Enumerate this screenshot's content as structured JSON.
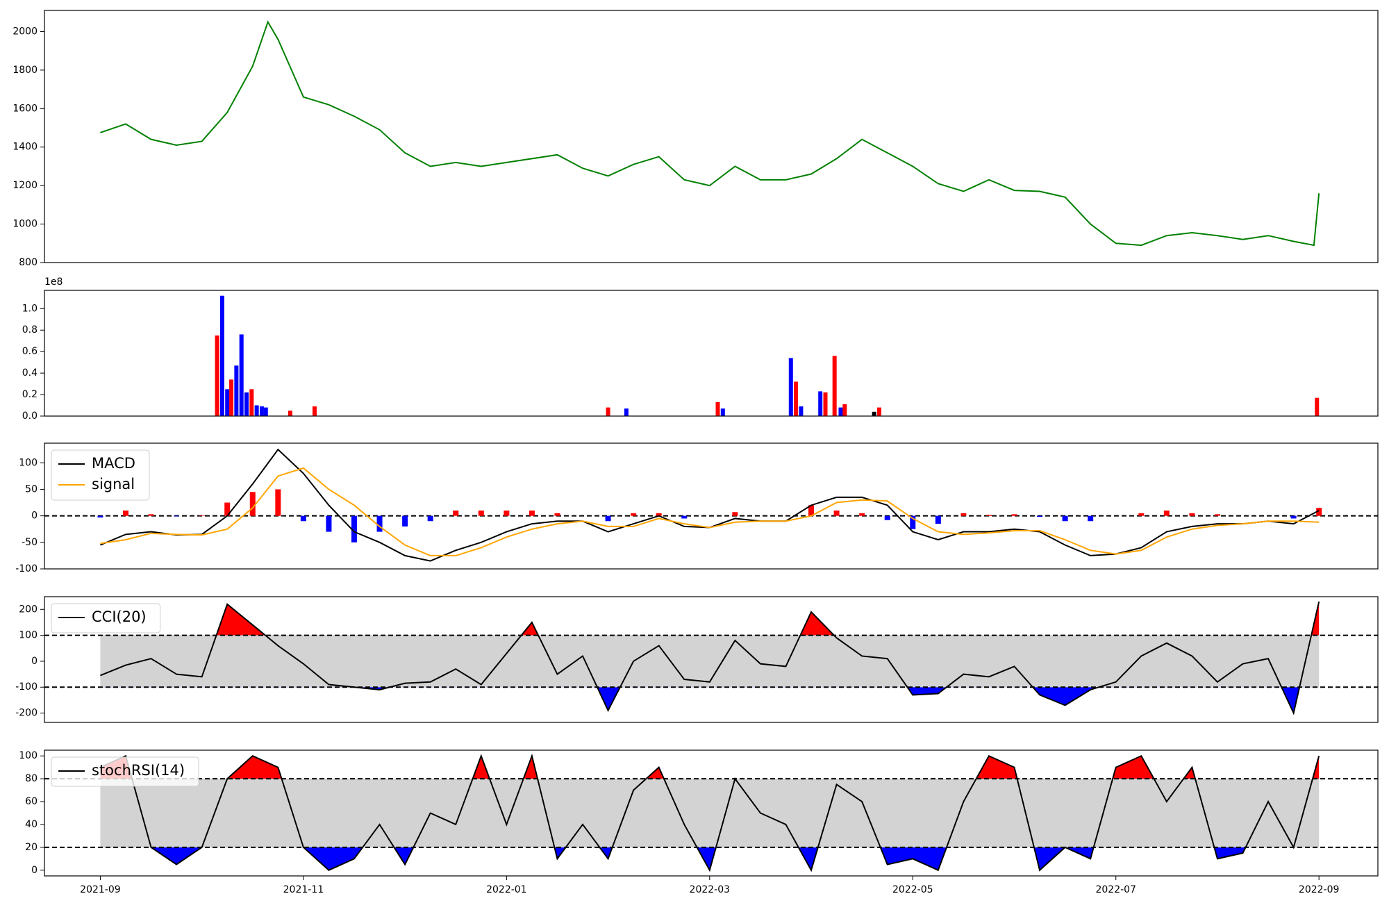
{
  "chart_data": [
    {
      "type": "line",
      "xlim": [
        -0.55,
        12.58
      ],
      "ylim": [
        800,
        2110
      ],
      "yticks": [
        800,
        1000,
        1200,
        1400,
        1600,
        1800,
        2000
      ],
      "x": [
        0,
        0.25,
        0.5,
        0.75,
        1,
        1.25,
        1.5,
        1.65,
        1.75,
        2,
        2.25,
        2.5,
        2.75,
        3,
        3.25,
        3.5,
        3.75,
        4,
        4.25,
        4.5,
        4.75,
        5,
        5.25,
        5.5,
        5.75,
        6,
        6.25,
        6.5,
        6.75,
        7,
        7.25,
        7.5,
        7.75,
        8,
        8.25,
        8.5,
        8.75,
        9,
        9.25,
        9.5,
        9.75,
        10,
        10.25,
        10.5,
        10.75,
        11,
        11.25,
        11.5,
        11.75,
        11.95,
        12
      ],
      "series": [
        {
          "color": "#008000",
          "values": [
            1475,
            1520,
            1440,
            1410,
            1430,
            1580,
            1820,
            2050,
            1960,
            1660,
            1620,
            1560,
            1490,
            1370,
            1300,
            1320,
            1300,
            1320,
            1340,
            1360,
            1290,
            1250,
            1310,
            1350,
            1230,
            1200,
            1300,
            1230,
            1230,
            1260,
            1340,
            1440,
            1370,
            1300,
            1210,
            1170,
            1230,
            1175,
            1170,
            1140,
            1000,
            900,
            890,
            940,
            955,
            940,
            920,
            940,
            910,
            890,
            1160
          ]
        }
      ]
    },
    {
      "type": "bar",
      "xlim": [
        -0.55,
        12.58
      ],
      "ylim": [
        0,
        117000000
      ],
      "offset_label": "1e8",
      "yticks": [
        {
          "value": 0,
          "label": "0.0"
        },
        {
          "value": 20000000,
          "label": "0.2"
        },
        {
          "value": 40000000,
          "label": "0.4"
        },
        {
          "value": 60000000,
          "label": "0.6"
        },
        {
          "value": 80000000,
          "label": "0.8"
        },
        {
          "value": 100000000,
          "label": "1.0"
        }
      ],
      "x": [
        1.15,
        1.2,
        1.25,
        1.29,
        1.34,
        1.39,
        1.44,
        1.49,
        1.54,
        1.59,
        1.63,
        1.87,
        2.11,
        5.0,
        5.18,
        6.08,
        6.13,
        6.8,
        6.85,
        6.9,
        7.09,
        7.14,
        7.23,
        7.29,
        7.33,
        7.62,
        7.67,
        11.98
      ],
      "values": [
        75000000,
        112000000,
        25000000,
        34000000,
        47000000,
        76000000,
        22000000,
        25000000,
        10000000,
        9000000,
        8000000,
        5000000,
        9000000,
        8000000,
        7000000,
        13000000,
        7000000,
        54000000,
        32000000,
        9000000,
        23000000,
        22000000,
        56000000,
        8000000,
        11000000,
        4000000,
        8000000,
        17000000
      ],
      "colors": [
        "#ff0000",
        "#0000ff",
        "#0000ff",
        "#ff0000",
        "#0000ff",
        "#0000ff",
        "#0000ff",
        "#ff0000",
        "#0000ff",
        "#0000ff",
        "#0000ff",
        "#ff0000",
        "#ff0000",
        "#ff0000",
        "#0000ff",
        "#ff0000",
        "#0000ff",
        "#0000ff",
        "#ff0000",
        "#0000ff",
        "#0000ff",
        "#ff0000",
        "#ff0000",
        "#0000ff",
        "#ff0000",
        "#000000",
        "#ff0000",
        "#ff0000"
      ]
    },
    {
      "type": "line",
      "xlim": [
        -0.55,
        12.58
      ],
      "ylim": [
        -100,
        137
      ],
      "yticks": [
        -100,
        -50,
        0,
        50,
        100
      ],
      "hlines": [
        0
      ],
      "legend": "upper left",
      "x": [
        0,
        0.25,
        0.5,
        0.75,
        1,
        1.25,
        1.5,
        1.75,
        2,
        2.25,
        2.5,
        2.75,
        3,
        3.25,
        3.5,
        3.75,
        4,
        4.25,
        4.5,
        4.75,
        5,
        5.25,
        5.5,
        5.75,
        6,
        6.25,
        6.5,
        6.75,
        7,
        7.25,
        7.5,
        7.75,
        8,
        8.25,
        8.5,
        8.75,
        9,
        9.25,
        9.5,
        9.75,
        10,
        10.25,
        10.5,
        10.75,
        11,
        11.25,
        11.5,
        11.75,
        12
      ],
      "series": [
        {
          "kind": "bar",
          "positive_color": "#ff0000",
          "negative_color": "#0000ff",
          "values": [
            -3,
            10,
            3,
            -1,
            1,
            25,
            45,
            50,
            -10,
            -30,
            -50,
            -30,
            -20,
            -10,
            10,
            10,
            10,
            10,
            5,
            0,
            -10,
            5,
            5,
            -5,
            0,
            7,
            0,
            0,
            20,
            10,
            5,
            -8,
            -25,
            -15,
            5,
            2,
            3,
            -2,
            -10,
            -10,
            0,
            5,
            10,
            5,
            3,
            0,
            0,
            -5,
            15
          ]
        },
        {
          "name": "MACD",
          "color": "#000000",
          "values": [
            -55,
            -35,
            -30,
            -36,
            -35,
            0,
            60,
            125,
            80,
            20,
            -30,
            -50,
            -75,
            -85,
            -65,
            -50,
            -30,
            -15,
            -10,
            -10,
            -30,
            -15,
            0,
            -20,
            -22,
            -5,
            -10,
            -10,
            20,
            35,
            35,
            20,
            -30,
            -45,
            -30,
            -30,
            -25,
            -30,
            -55,
            -75,
            -72,
            -60,
            -30,
            -20,
            -15,
            -15,
            -10,
            -15,
            10
          ]
        },
        {
          "name": "signal",
          "color": "#ffa500",
          "values": [
            -52,
            -45,
            -33,
            -35,
            -36,
            -25,
            15,
            75,
            90,
            50,
            20,
            -20,
            -55,
            -75,
            -75,
            -60,
            -40,
            -25,
            -15,
            -10,
            -20,
            -20,
            -5,
            -15,
            -22,
            -12,
            -10,
            -10,
            0,
            25,
            30,
            28,
            -5,
            -30,
            -35,
            -32,
            -28,
            -28,
            -45,
            -65,
            -72,
            -65,
            -40,
            -25,
            -18,
            -15,
            -10,
            -10,
            -12
          ]
        }
      ]
    },
    {
      "type": "line",
      "xlim": [
        -0.55,
        12.58
      ],
      "ylim": [
        -236,
        249
      ],
      "yticks": [
        -200,
        -100,
        0,
        100,
        200
      ],
      "legend": "upper left",
      "bands": {
        "upper": 100,
        "lower": -100,
        "fill": "#d3d3d3",
        "upper_color": "#ff0000",
        "lower_color": "#0000ff"
      },
      "x": [
        0,
        0.25,
        0.5,
        0.75,
        1,
        1.25,
        1.5,
        1.75,
        2,
        2.25,
        2.5,
        2.75,
        3,
        3.25,
        3.5,
        3.75,
        4,
        4.25,
        4.5,
        4.75,
        5,
        5.25,
        5.5,
        5.75,
        6,
        6.25,
        6.5,
        6.75,
        7,
        7.25,
        7.5,
        7.75,
        8,
        8.25,
        8.5,
        8.75,
        9,
        9.25,
        9.5,
        9.75,
        10,
        10.25,
        10.5,
        10.75,
        11,
        11.25,
        11.5,
        11.75,
        12
      ],
      "series": [
        {
          "name": "CCI(20)",
          "color": "#000000",
          "values": [
            -55,
            -15,
            10,
            -50,
            -60,
            220,
            140,
            60,
            -10,
            -90,
            -100,
            -110,
            -85,
            -80,
            -30,
            -90,
            30,
            150,
            -50,
            20,
            -190,
            0,
            60,
            -70,
            -80,
            80,
            -10,
            -20,
            190,
            90,
            20,
            10,
            -130,
            -125,
            -50,
            -60,
            -20,
            -130,
            -170,
            -110,
            -80,
            20,
            70,
            20,
            -80,
            -10,
            10,
            -200,
            230
          ]
        }
      ]
    },
    {
      "type": "line",
      "xlim": [
        -0.55,
        12.58
      ],
      "ylim": [
        -5,
        105
      ],
      "yticks": [
        0,
        20,
        40,
        60,
        80,
        100
      ],
      "legend": "upper left",
      "bands": {
        "upper": 80,
        "lower": 20,
        "fill": "#d3d3d3",
        "upper_color": "#ff0000",
        "lower_color": "#0000ff"
      },
      "xticks": [
        {
          "value": 0,
          "label": "2021-09"
        },
        {
          "value": 2,
          "label": "2021-11"
        },
        {
          "value": 4,
          "label": "2022-01"
        },
        {
          "value": 6,
          "label": "2022-03"
        },
        {
          "value": 8,
          "label": "2022-05"
        },
        {
          "value": 10,
          "label": "2022-07"
        },
        {
          "value": 12,
          "label": "2022-09"
        }
      ],
      "x": [
        0,
        0.25,
        0.5,
        0.75,
        1,
        1.25,
        1.5,
        1.75,
        2,
        2.25,
        2.5,
        2.75,
        3,
        3.25,
        3.5,
        3.75,
        4,
        4.25,
        4.5,
        4.75,
        5,
        5.25,
        5.5,
        5.75,
        6,
        6.25,
        6.5,
        6.75,
        7,
        7.25,
        7.5,
        7.75,
        8,
        8.25,
        8.5,
        8.75,
        9,
        9.25,
        9.5,
        9.75,
        10,
        10.25,
        10.5,
        10.75,
        11,
        11.25,
        11.5,
        11.75,
        12
      ],
      "series": [
        {
          "name": "stochRSI(14)",
          "color": "#000000",
          "values": [
            90,
            100,
            20,
            5,
            20,
            80,
            100,
            90,
            20,
            0,
            10,
            40,
            5,
            50,
            40,
            100,
            40,
            100,
            10,
            40,
            10,
            70,
            90,
            40,
            0,
            80,
            50,
            40,
            0,
            75,
            60,
            5,
            10,
            0,
            60,
            100,
            90,
            0,
            20,
            10,
            90,
            100,
            60,
            90,
            10,
            15,
            60,
            20,
            100
          ]
        }
      ]
    }
  ]
}
